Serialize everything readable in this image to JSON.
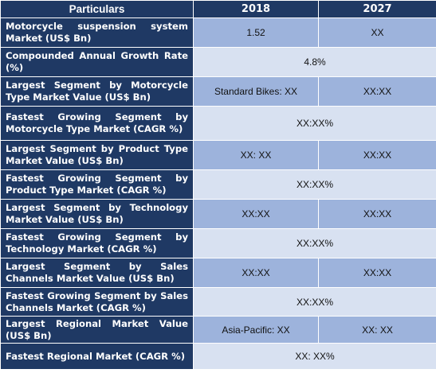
{
  "header": {
    "particulars": "Particulars",
    "year_a": "2018",
    "year_b": "2027"
  },
  "rows": [
    {
      "label": "Motorcycle suspension system Market (US$ Bn)",
      "v2018": "1.52",
      "v2027": "XX"
    },
    {
      "label": "Compounded Annual Growth Rate (%)",
      "value": "4.8%"
    },
    {
      "label": "Largest Segment by Motorcycle Type Market Value (US$ Bn)",
      "v2018": "Standard Bikes: XX",
      "v2027": "XX:XX"
    },
    {
      "label": "Fastest Growing Segment by Motorcycle Type Market (CAGR %)",
      "value": "XX:XX%"
    },
    {
      "label": "Largest Segment by Product Type Market Value (US$ Bn)",
      "v2018": "XX: XX",
      "v2027": "XX:XX"
    },
    {
      "label": "Fastest Growing Segment by Product Type Market (CAGR %)",
      "value": "XX:XX%"
    },
    {
      "label": "Largest Segment by Technology Market Value (US$ Bn)",
      "v2018": "XX:XX",
      "v2027": "XX:XX"
    },
    {
      "label": "Fastest Growing Segment by Technology Market (CAGR %)",
      "value": "XX:XX%"
    },
    {
      "label": "Largest Segment by Sales Channels Market Value (US$ Bn)",
      "v2018": "XX:XX",
      "v2027": "XX:XX"
    },
    {
      "label": "Fastest Growing Segment by Sales Channels Market (CAGR %)",
      "value": "XX:XX%"
    },
    {
      "label": "Largest Regional Market Value (US$ Bn)",
      "v2018": "Asia-Pacific: XX",
      "v2027": "XX: XX"
    },
    {
      "label": "Fastest Regional Market (CAGR %)",
      "value": "XX: XX%"
    }
  ]
}
